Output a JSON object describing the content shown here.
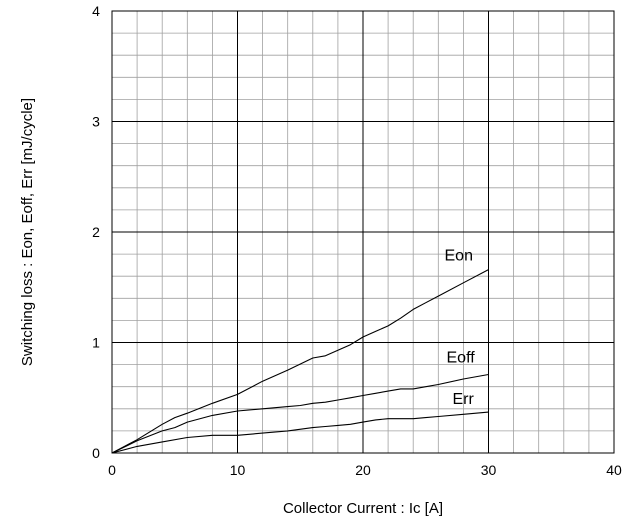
{
  "chart_data": {
    "type": "line",
    "title": "",
    "xlabel": "Collector Current : Ic [A]",
    "ylabel": "Switching loss : Eon, Eoff, Err [mJ/cycle]",
    "xlim": [
      0,
      40
    ],
    "ylim": [
      0,
      4
    ],
    "x_ticks": [
      "0",
      "10",
      "20",
      "30",
      "40"
    ],
    "y_ticks": [
      "0",
      "1",
      "2",
      "3",
      "4"
    ],
    "grid": true,
    "legend": "inline labels next to curves",
    "colors": {
      "line": "#000000",
      "major_grid": "#000000",
      "minor_grid": "#a0a0a0"
    },
    "series": [
      {
        "name": "Eon",
        "x": [
          0,
          2,
          4,
          5,
          6,
          8,
          10,
          12,
          14,
          16,
          17,
          18,
          19,
          20,
          21,
          22,
          23,
          24,
          25,
          26,
          28,
          30
        ],
        "y": [
          0,
          0.12,
          0.26,
          0.32,
          0.36,
          0.45,
          0.53,
          0.65,
          0.75,
          0.86,
          0.88,
          0.93,
          0.98,
          1.05,
          1.1,
          1.15,
          1.22,
          1.3,
          1.36,
          1.42,
          1.54,
          1.66
        ]
      },
      {
        "name": "Eoff",
        "x": [
          0,
          2,
          4,
          5,
          6,
          8,
          10,
          12,
          14,
          15,
          16,
          17,
          18,
          19,
          20,
          21,
          22,
          23,
          24,
          25,
          26,
          28,
          30
        ],
        "y": [
          0,
          0.11,
          0.2,
          0.23,
          0.28,
          0.34,
          0.38,
          0.4,
          0.42,
          0.43,
          0.45,
          0.46,
          0.48,
          0.5,
          0.52,
          0.54,
          0.56,
          0.58,
          0.58,
          0.6,
          0.62,
          0.67,
          0.71
        ]
      },
      {
        "name": "Err",
        "x": [
          0,
          2,
          4,
          6,
          8,
          10,
          12,
          14,
          16,
          17,
          18,
          19,
          20,
          21,
          22,
          23,
          24,
          25,
          26,
          28,
          30
        ],
        "y": [
          0,
          0.06,
          0.1,
          0.14,
          0.16,
          0.16,
          0.18,
          0.2,
          0.23,
          0.24,
          0.25,
          0.26,
          0.28,
          0.3,
          0.31,
          0.31,
          0.31,
          0.32,
          0.33,
          0.35,
          0.37
        ]
      }
    ]
  }
}
